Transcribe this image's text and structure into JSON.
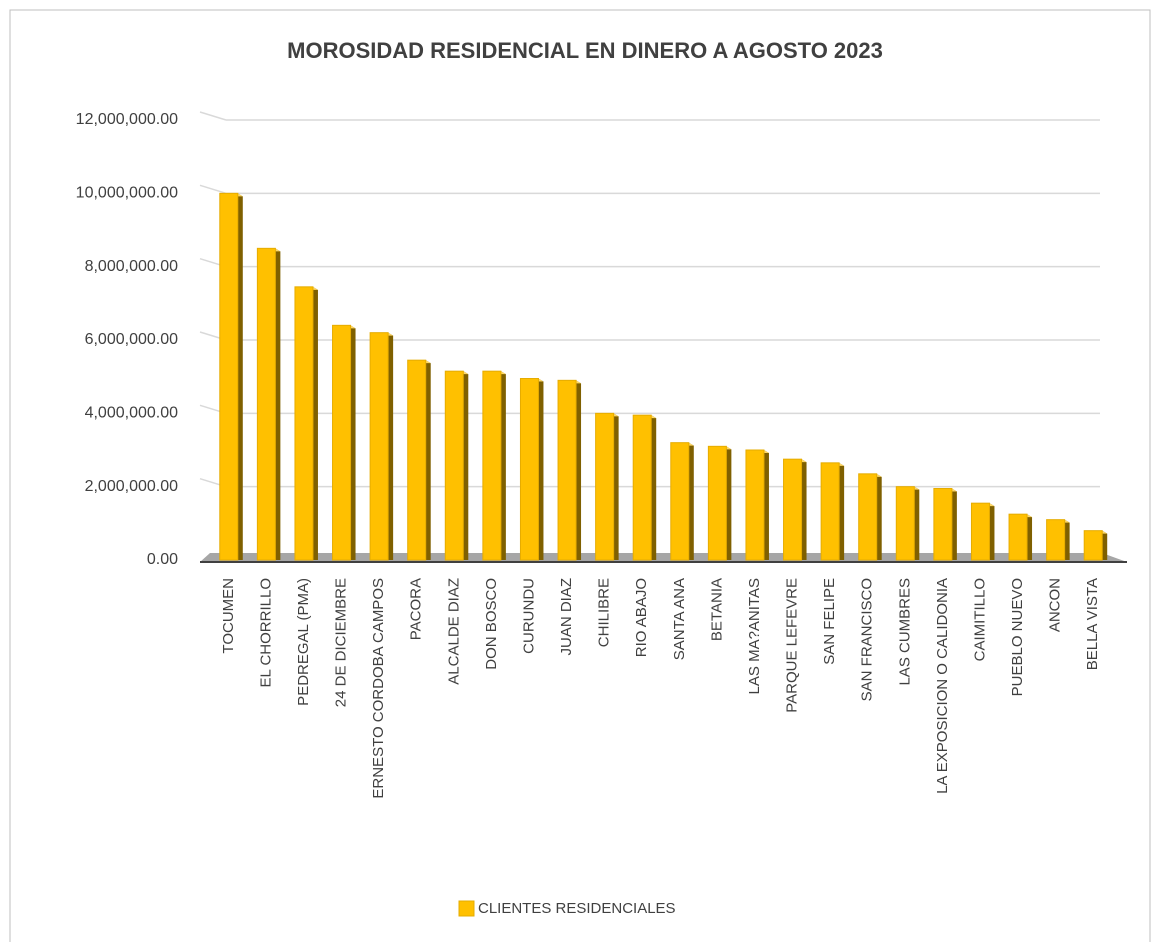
{
  "chart_data": {
    "type": "bar",
    "title": "MOROSIDAD RESIDENCIAL EN DINERO A AGOSTO 2023",
    "categories": [
      "TOCUMEN",
      "EL CHORRILLO",
      "PEDREGAL (PMA)",
      "24 DE DICIEMBRE",
      "ERNESTO CORDOBA CAMPOS",
      "PACORA",
      "ALCALDE DIAZ",
      "DON BOSCO",
      "CURUNDU",
      "JUAN DIAZ",
      "CHILIBRE",
      "RIO ABAJO",
      "SANTA ANA",
      "BETANIA",
      "LAS MA?ANITAS",
      "PARQUE LEFEVRE",
      "SAN FELIPE",
      "SAN FRANCISCO",
      "LAS CUMBRES",
      "LA EXPOSICION O CALIDONIA",
      "CAIMITILLO",
      "PUEBLO NUEVO",
      "ANCON",
      "BELLA VISTA"
    ],
    "series": [
      {
        "name": "CLIENTES RESIDENCIALES",
        "color": "#ffc000",
        "values": [
          10000000,
          8500000,
          7450000,
          6400000,
          6200000,
          5450000,
          5150000,
          5150000,
          4950000,
          4900000,
          4000000,
          3950000,
          3200000,
          3100000,
          3000000,
          2750000,
          2650000,
          2350000,
          2000000,
          1950000,
          1550000,
          1250000,
          1100000,
          800000
        ]
      }
    ],
    "ylim": [
      0,
      12000000
    ],
    "yticks": [
      {
        "value": 0,
        "label": "0.00"
      },
      {
        "value": 2000000,
        "label": "2,000,000.00"
      },
      {
        "value": 4000000,
        "label": "4,000,000.00"
      },
      {
        "value": 6000000,
        "label": "6,000,000.00"
      },
      {
        "value": 8000000,
        "label": "8,000,000.00"
      },
      {
        "value": 10000000,
        "label": "10,000,000.00"
      },
      {
        "value": 12000000,
        "label": "12,000,000.00"
      }
    ],
    "grid": true,
    "legend": "bottom"
  }
}
